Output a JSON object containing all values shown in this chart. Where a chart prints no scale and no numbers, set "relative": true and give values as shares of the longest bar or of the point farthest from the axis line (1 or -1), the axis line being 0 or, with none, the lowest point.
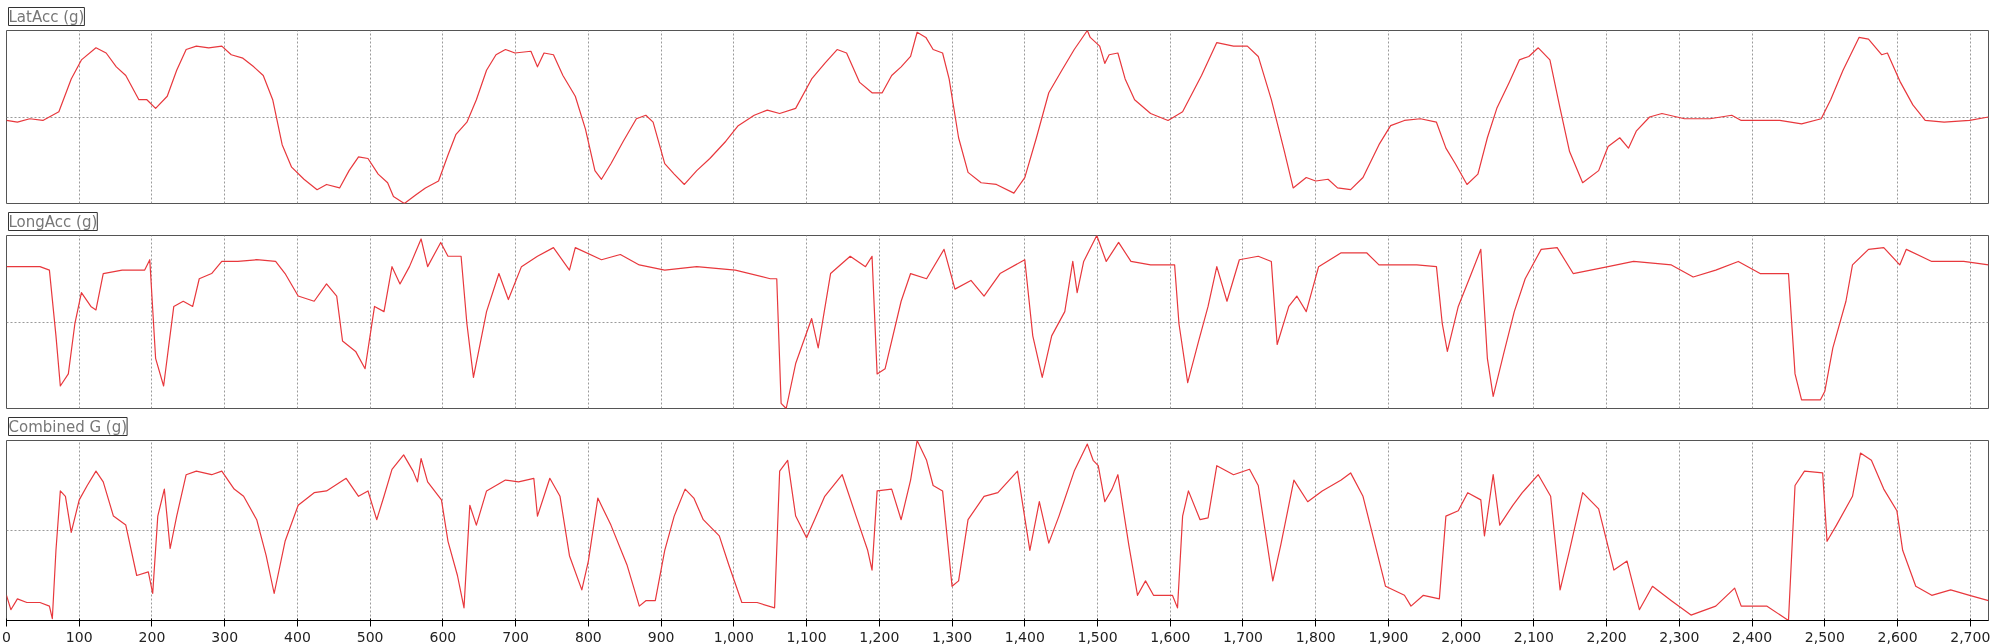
{
  "chart_data": [
    {
      "type": "line",
      "title": "LatAcc (g)",
      "relative": true,
      "grid": true,
      "tick_labels": false,
      "marker": "none",
      "line_style": "solid",
      "xlim": [
        0,
        2725
      ],
      "xticks": [
        0,
        100,
        200,
        300,
        400,
        500,
        600,
        700,
        800,
        900,
        1000,
        1100,
        1200,
        1300,
        1400,
        1500,
        1600,
        1700,
        1800,
        1900,
        2000,
        2100,
        2200,
        2300,
        2400,
        2500,
        2600,
        2700
      ],
      "x": [
        0,
        15,
        32,
        50,
        72,
        89,
        103,
        123,
        137,
        151,
        164,
        182,
        193,
        205,
        221,
        234,
        247,
        261,
        278,
        296,
        309,
        325,
        340,
        353,
        366,
        379,
        392,
        409,
        427,
        440,
        458,
        471,
        484,
        497,
        511,
        524,
        532,
        547,
        563,
        576,
        594,
        607,
        618,
        633,
        646,
        660,
        673,
        686,
        699,
        721,
        730,
        739,
        752,
        765,
        782,
        796,
        809,
        818,
        831,
        848,
        866,
        879,
        889,
        905,
        918,
        932,
        949,
        967,
        989,
        1006,
        1028,
        1046,
        1063,
        1085,
        1107,
        1125,
        1142,
        1155,
        1173,
        1190,
        1204,
        1217,
        1230,
        1243,
        1252,
        1264,
        1274,
        1287,
        1296,
        1309,
        1322,
        1340,
        1361,
        1385,
        1400,
        1416,
        1433,
        1451,
        1468,
        1486,
        1490,
        1503,
        1510,
        1516,
        1528,
        1538,
        1551,
        1573,
        1597,
        1617,
        1643,
        1664,
        1687,
        1706,
        1721,
        1739,
        1757,
        1769,
        1787,
        1800,
        1817,
        1830,
        1848,
        1865,
        1887,
        1903,
        1922,
        1944,
        1966,
        1979,
        1992,
        2008,
        2023,
        2036,
        2049,
        2066,
        2080,
        2093,
        2106,
        2122,
        2136,
        2149,
        2167,
        2189,
        2202,
        2218,
        2230,
        2241,
        2259,
        2276,
        2307,
        2342,
        2372,
        2385,
        2438,
        2468,
        2495,
        2508,
        2525,
        2547,
        2560,
        2578,
        2586,
        2604,
        2621,
        2638,
        2664,
        2699,
        2725
      ],
      "series": [
        {
          "color": "#e8383d",
          "values": [
            0.48,
            0.47,
            0.49,
            0.48,
            0.53,
            0.72,
            0.83,
            0.9,
            0.87,
            0.79,
            0.74,
            0.6,
            0.6,
            0.55,
            0.62,
            0.77,
            0.89,
            0.91,
            0.9,
            0.91,
            0.86,
            0.84,
            0.79,
            0.74,
            0.6,
            0.34,
            0.21,
            0.14,
            0.08,
            0.11,
            0.09,
            0.19,
            0.27,
            0.26,
            0.17,
            0.12,
            0.04,
            0.0,
            0.05,
            0.09,
            0.13,
            0.28,
            0.4,
            0.47,
            0.6,
            0.77,
            0.86,
            0.89,
            0.87,
            0.88,
            0.79,
            0.87,
            0.86,
            0.74,
            0.62,
            0.43,
            0.19,
            0.14,
            0.23,
            0.36,
            0.49,
            0.51,
            0.47,
            0.23,
            0.17,
            0.11,
            0.19,
            0.26,
            0.36,
            0.45,
            0.51,
            0.54,
            0.52,
            0.55,
            0.72,
            0.81,
            0.89,
            0.87,
            0.7,
            0.64,
            0.64,
            0.74,
            0.79,
            0.85,
            0.99,
            0.96,
            0.89,
            0.87,
            0.72,
            0.38,
            0.18,
            0.12,
            0.11,
            0.06,
            0.15,
            0.38,
            0.64,
            0.77,
            0.89,
            1.0,
            0.96,
            0.91,
            0.81,
            0.86,
            0.87,
            0.72,
            0.6,
            0.52,
            0.48,
            0.53,
            0.74,
            0.93,
            0.91,
            0.91,
            0.85,
            0.6,
            0.3,
            0.09,
            0.15,
            0.13,
            0.14,
            0.09,
            0.08,
            0.15,
            0.34,
            0.45,
            0.48,
            0.49,
            0.47,
            0.32,
            0.23,
            0.11,
            0.17,
            0.38,
            0.55,
            0.7,
            0.83,
            0.85,
            0.9,
            0.83,
            0.55,
            0.3,
            0.12,
            0.19,
            0.33,
            0.38,
            0.32,
            0.42,
            0.5,
            0.52,
            0.49,
            0.49,
            0.51,
            0.48,
            0.48,
            0.46,
            0.49,
            0.6,
            0.77,
            0.96,
            0.95,
            0.86,
            0.87,
            0.7,
            0.57,
            0.48,
            0.47,
            0.48,
            0.5
          ]
        }
      ]
    },
    {
      "type": "line",
      "title": "LongAcc (g)",
      "relative": true,
      "grid": true,
      "tick_labels": false,
      "marker": "none",
      "line_style": "solid",
      "xlim": [
        0,
        2725
      ],
      "xticks": [
        0,
        100,
        200,
        300,
        400,
        500,
        600,
        700,
        800,
        900,
        1000,
        1100,
        1200,
        1300,
        1400,
        1500,
        1600,
        1700,
        1800,
        1900,
        2000,
        2100,
        2200,
        2300,
        2400,
        2500,
        2600,
        2700
      ],
      "x": [
        0,
        19,
        46,
        59,
        68,
        74,
        85,
        94,
        103,
        116,
        123,
        133,
        159,
        190,
        197,
        205,
        216,
        230,
        243,
        256,
        265,
        282,
        296,
        318,
        344,
        370,
        383,
        401,
        423,
        440,
        454,
        462,
        480,
        493,
        506,
        519,
        530,
        541,
        554,
        570,
        579,
        597,
        607,
        625,
        633,
        642,
        660,
        677,
        690,
        708,
        730,
        752,
        774,
        782,
        818,
        844,
        870,
        905,
        949,
        1002,
        1050,
        1059,
        1065,
        1072,
        1085,
        1107,
        1116,
        1133,
        1160,
        1181,
        1190,
        1197,
        1208,
        1230,
        1243,
        1265,
        1289,
        1304,
        1326,
        1344,
        1366,
        1400,
        1411,
        1424,
        1437,
        1455,
        1466,
        1472,
        1481,
        1499,
        1512,
        1529,
        1546,
        1573,
        1606,
        1612,
        1624,
        1639,
        1652,
        1664,
        1678,
        1695,
        1721,
        1739,
        1747,
        1763,
        1774,
        1787,
        1804,
        1835,
        1870,
        1887,
        1939,
        1966,
        1974,
        1981,
        1996,
        2014,
        2027,
        2036,
        2044,
        2058,
        2073,
        2088,
        2110,
        2132,
        2154,
        2202,
        2237,
        2289,
        2319,
        2350,
        2381,
        2411,
        2450,
        2459,
        2468,
        2494,
        2500,
        2511,
        2529,
        2538,
        2560,
        2581,
        2603,
        2612,
        2647,
        2691,
        2725
      ],
      "series": [
        {
          "color": "#e8383d",
          "values": [
            0.82,
            0.82,
            0.82,
            0.8,
            0.42,
            0.13,
            0.2,
            0.49,
            0.67,
            0.59,
            0.57,
            0.78,
            0.8,
            0.8,
            0.86,
            0.29,
            0.13,
            0.59,
            0.62,
            0.59,
            0.75,
            0.78,
            0.85,
            0.85,
            0.86,
            0.85,
            0.78,
            0.65,
            0.62,
            0.72,
            0.65,
            0.39,
            0.33,
            0.23,
            0.59,
            0.56,
            0.82,
            0.72,
            0.82,
            0.98,
            0.82,
            0.96,
            0.88,
            0.88,
            0.49,
            0.18,
            0.56,
            0.78,
            0.63,
            0.82,
            0.88,
            0.93,
            0.8,
            0.93,
            0.86,
            0.89,
            0.83,
            0.8,
            0.82,
            0.8,
            0.75,
            0.75,
            0.03,
            0.0,
            0.26,
            0.52,
            0.35,
            0.78,
            0.88,
            0.82,
            0.88,
            0.2,
            0.23,
            0.62,
            0.78,
            0.75,
            0.92,
            0.69,
            0.74,
            0.65,
            0.78,
            0.86,
            0.42,
            0.18,
            0.42,
            0.56,
            0.85,
            0.67,
            0.85,
            1.0,
            0.85,
            0.96,
            0.85,
            0.83,
            0.83,
            0.49,
            0.15,
            0.39,
            0.59,
            0.82,
            0.62,
            0.86,
            0.88,
            0.85,
            0.37,
            0.59,
            0.65,
            0.56,
            0.82,
            0.9,
            0.9,
            0.83,
            0.83,
            0.82,
            0.49,
            0.33,
            0.59,
            0.78,
            0.92,
            0.29,
            0.07,
            0.31,
            0.56,
            0.75,
            0.92,
            0.93,
            0.78,
            0.82,
            0.85,
            0.83,
            0.76,
            0.8,
            0.85,
            0.78,
            0.78,
            0.2,
            0.05,
            0.05,
            0.1,
            0.35,
            0.62,
            0.83,
            0.92,
            0.93,
            0.83,
            0.92,
            0.85,
            0.85,
            0.83
          ]
        }
      ]
    },
    {
      "type": "line",
      "title": "Combined G (g)",
      "relative": true,
      "grid": true,
      "tick_labels": "x",
      "marker": "none",
      "line_style": "solid",
      "xlim": [
        0,
        2725
      ],
      "xticks": [
        0,
        100,
        200,
        300,
        400,
        500,
        600,
        700,
        800,
        900,
        {
          "value": 1000,
          "label": "1,000"
        },
        {
          "value": 1100,
          "label": "1,100"
        },
        {
          "value": 1200,
          "label": "1,200"
        },
        {
          "value": 1300,
          "label": "1,300"
        },
        {
          "value": 1400,
          "label": "1,400"
        },
        {
          "value": 1500,
          "label": "1,500"
        },
        {
          "value": 1600,
          "label": "1,600"
        },
        {
          "value": 1700,
          "label": "1,700"
        },
        {
          "value": 1800,
          "label": "1,800"
        },
        {
          "value": 1900,
          "label": "1,900"
        },
        {
          "value": 2000,
          "label": "2,000"
        },
        {
          "value": 2100,
          "label": "2,100"
        },
        {
          "value": 2200,
          "label": "2,200"
        },
        {
          "value": 2300,
          "label": "2,300"
        },
        {
          "value": 2400,
          "label": "2,400"
        },
        {
          "value": 2500,
          "label": "2,500"
        },
        {
          "value": 2600,
          "label": "2,600"
        },
        {
          "value": 2700,
          "label": "2,700"
        }
      ],
      "x": [
        0,
        6,
        15,
        28,
        46,
        59,
        63,
        68,
        74,
        81,
        89,
        100,
        111,
        123,
        133,
        147,
        164,
        179,
        195,
        201,
        208,
        217,
        225,
        234,
        247,
        261,
        282,
        296,
        313,
        326,
        344,
        357,
        368,
        383,
        401,
        423,
        440,
        467,
        484,
        497,
        509,
        519,
        530,
        546,
        559,
        565,
        570,
        579,
        598,
        607,
        620,
        629,
        637,
        646,
        660,
        686,
        704,
        725,
        730,
        747,
        761,
        774,
        791,
        800,
        813,
        831,
        853,
        870,
        879,
        892,
        905,
        918,
        933,
        945,
        958,
        980,
        993,
        1011,
        1032,
        1056,
        1063,
        1074,
        1085,
        1100,
        1111,
        1125,
        1149,
        1168,
        1184,
        1190,
        1197,
        1217,
        1230,
        1243,
        1252,
        1265,
        1274,
        1287,
        1300,
        1309,
        1322,
        1344,
        1363,
        1390,
        1407,
        1420,
        1433,
        1447,
        1468,
        1486,
        1494,
        1501,
        1510,
        1520,
        1528,
        1543,
        1555,
        1566,
        1577,
        1603,
        1610,
        1617,
        1625,
        1641,
        1652,
        1664,
        1687,
        1709,
        1721,
        1741,
        1752,
        1770,
        1789,
        1809,
        1835,
        1848,
        1865,
        1896,
        1922,
        1931,
        1948,
        1970,
        1979,
        1996,
        2009,
        2027,
        2032,
        2044,
        2053,
        2071,
        2084,
        2106,
        2123,
        2136,
        2149,
        2167,
        2189,
        2210,
        2228,
        2245,
        2263,
        2289,
        2316,
        2350,
        2376,
        2385,
        2420,
        2450,
        2459,
        2472,
        2497,
        2503,
        2516,
        2538,
        2549,
        2564,
        2581,
        2599,
        2607,
        2625,
        2647,
        2673,
        2699,
        2725
      ],
      "series": [
        {
          "color": "#e8383d",
          "values": [
            0.14,
            0.06,
            0.12,
            0.1,
            0.1,
            0.08,
            0.01,
            0.39,
            0.72,
            0.69,
            0.49,
            0.67,
            0.75,
            0.83,
            0.77,
            0.58,
            0.53,
            0.25,
            0.27,
            0.15,
            0.58,
            0.73,
            0.4,
            0.58,
            0.81,
            0.83,
            0.81,
            0.83,
            0.73,
            0.69,
            0.56,
            0.36,
            0.15,
            0.44,
            0.64,
            0.71,
            0.72,
            0.79,
            0.69,
            0.72,
            0.56,
            0.69,
            0.84,
            0.92,
            0.83,
            0.77,
            0.9,
            0.77,
            0.67,
            0.44,
            0.25,
            0.07,
            0.64,
            0.53,
            0.72,
            0.78,
            0.77,
            0.79,
            0.58,
            0.79,
            0.69,
            0.36,
            0.17,
            0.33,
            0.68,
            0.53,
            0.31,
            0.08,
            0.11,
            0.11,
            0.39,
            0.58,
            0.73,
            0.68,
            0.56,
            0.47,
            0.31,
            0.1,
            0.1,
            0.07,
            0.83,
            0.89,
            0.58,
            0.46,
            0.56,
            0.69,
            0.81,
            0.58,
            0.39,
            0.28,
            0.72,
            0.73,
            0.56,
            0.78,
            1.0,
            0.89,
            0.75,
            0.72,
            0.19,
            0.22,
            0.56,
            0.69,
            0.71,
            0.83,
            0.39,
            0.66,
            0.43,
            0.58,
            0.83,
            0.98,
            0.89,
            0.86,
            0.66,
            0.73,
            0.81,
            0.42,
            0.14,
            0.22,
            0.14,
            0.14,
            0.07,
            0.58,
            0.72,
            0.56,
            0.57,
            0.86,
            0.81,
            0.84,
            0.75,
            0.22,
            0.42,
            0.78,
            0.66,
            0.72,
            0.78,
            0.82,
            0.69,
            0.19,
            0.14,
            0.08,
            0.14,
            0.12,
            0.58,
            0.61,
            0.71,
            0.67,
            0.47,
            0.81,
            0.53,
            0.64,
            0.71,
            0.81,
            0.69,
            0.17,
            0.39,
            0.71,
            0.62,
            0.28,
            0.33,
            0.06,
            0.19,
            0.11,
            0.03,
            0.08,
            0.18,
            0.08,
            0.08,
            0.0,
            0.75,
            0.83,
            0.82,
            0.44,
            0.53,
            0.69,
            0.93,
            0.89,
            0.73,
            0.61,
            0.39,
            0.19,
            0.14,
            0.17,
            0.14,
            0.11
          ]
        }
      ]
    }
  ]
}
